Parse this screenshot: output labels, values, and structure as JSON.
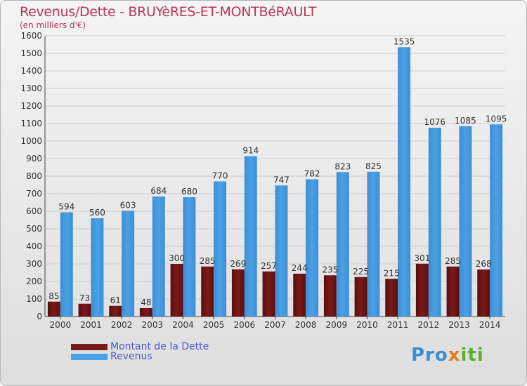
{
  "title": "Revenus/Dette - BRUYèRES-ET-MONTBéRAULT",
  "subtitle": "(en milliers d'€)",
  "colors": {
    "dette": "#7a1a1a",
    "revenus": "#4aa0e6"
  },
  "logo": {
    "p1": "Pro",
    "p2": "x",
    "p3": "iti"
  },
  "chart_data": {
    "type": "bar",
    "categories": [
      "2000",
      "2001",
      "2002",
      "2003",
      "2004",
      "2005",
      "2006",
      "2007",
      "2008",
      "2009",
      "2010",
      "2011",
      "2012",
      "2013",
      "2014"
    ],
    "series": [
      {
        "name": "Montant de la Dette",
        "values": [
          85,
          73,
          61,
          48,
          300,
          285,
          269,
          257,
          244,
          235,
          225,
          215,
          301,
          285,
          268
        ]
      },
      {
        "name": "Revenus",
        "values": [
          594,
          560,
          603,
          684,
          680,
          770,
          914,
          747,
          782,
          823,
          825,
          1535,
          1076,
          1085,
          1095
        ]
      }
    ],
    "yticks": [
      0,
      100,
      200,
      300,
      400,
      500,
      600,
      700,
      800,
      900,
      1000,
      1100,
      1200,
      1300,
      1400,
      1500,
      1600
    ],
    "ylim": [
      0,
      1600
    ],
    "legend_position": "bottom-left"
  }
}
